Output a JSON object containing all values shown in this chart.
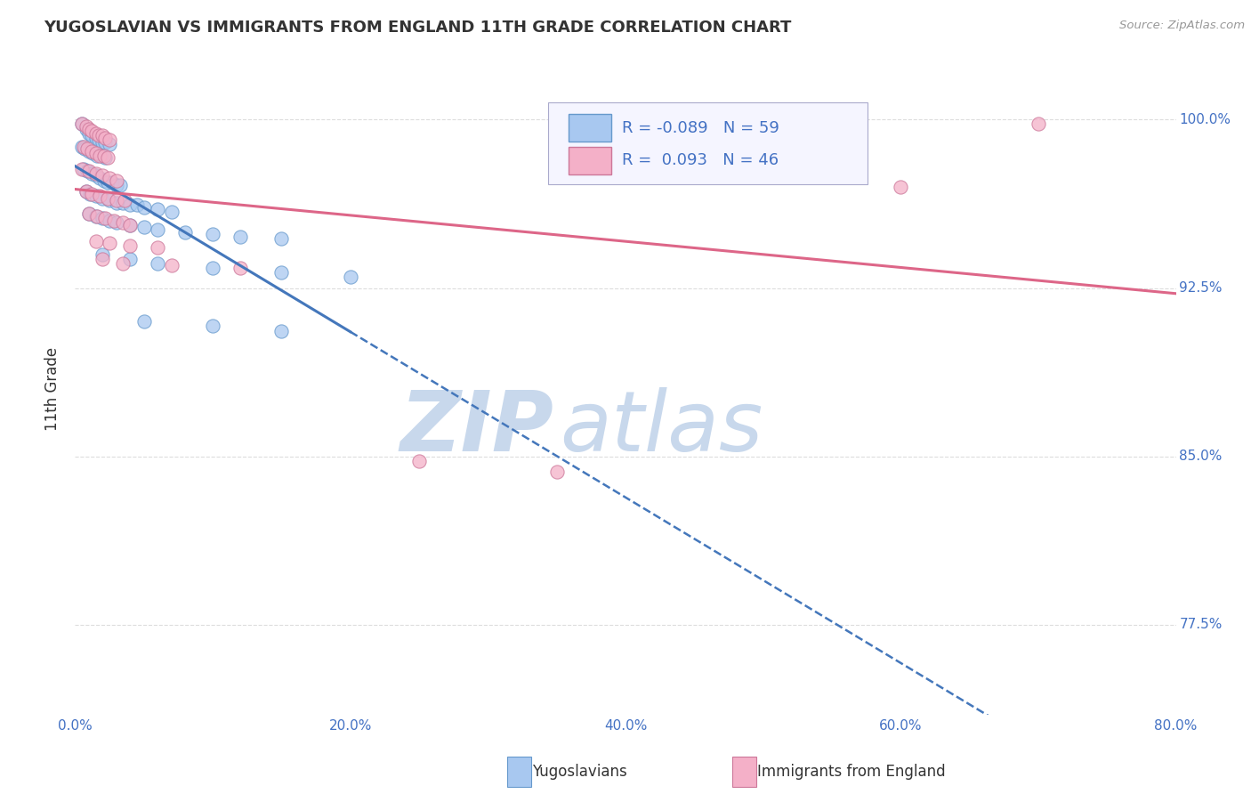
{
  "title": "YUGOSLAVIAN VS IMMIGRANTS FROM ENGLAND 11TH GRADE CORRELATION CHART",
  "source": "Source: ZipAtlas.com",
  "xlabel_blue": "Yugoslavians",
  "xlabel_pink": "Immigrants from England",
  "ylabel": "11th Grade",
  "x_min": 0.0,
  "x_max": 0.8,
  "y_min": 0.735,
  "y_max": 1.025,
  "yticks": [
    0.775,
    0.85,
    0.925,
    1.0
  ],
  "ytick_labels": [
    "77.5%",
    "85.0%",
    "92.5%",
    "100.0%"
  ],
  "xticks": [
    0.0,
    0.2,
    0.4,
    0.6,
    0.8
  ],
  "xtick_labels": [
    "0.0%",
    "20.0%",
    "40.0%",
    "60.0%",
    "80.0%"
  ],
  "blue_R": -0.089,
  "blue_N": 59,
  "pink_R": 0.093,
  "pink_N": 46,
  "blue_color": "#a8c8f0",
  "blue_edge_color": "#6699cc",
  "pink_color": "#f4b0c8",
  "pink_edge_color": "#cc7799",
  "blue_trend_color": "#4477bb",
  "pink_trend_color": "#dd6688",
  "blue_scatter": [
    [
      0.005,
      0.998
    ],
    [
      0.008,
      0.996
    ],
    [
      0.01,
      0.994
    ],
    [
      0.012,
      0.993
    ],
    [
      0.015,
      0.992
    ],
    [
      0.017,
      0.991
    ],
    [
      0.02,
      0.99
    ],
    [
      0.022,
      0.99
    ],
    [
      0.025,
      0.989
    ],
    [
      0.005,
      0.988
    ],
    [
      0.007,
      0.987
    ],
    [
      0.01,
      0.986
    ],
    [
      0.013,
      0.985
    ],
    [
      0.016,
      0.984
    ],
    [
      0.019,
      0.984
    ],
    [
      0.022,
      0.983
    ],
    [
      0.006,
      0.978
    ],
    [
      0.009,
      0.977
    ],
    [
      0.012,
      0.976
    ],
    [
      0.015,
      0.975
    ],
    [
      0.018,
      0.974
    ],
    [
      0.021,
      0.973
    ],
    [
      0.024,
      0.972
    ],
    [
      0.027,
      0.972
    ],
    [
      0.03,
      0.971
    ],
    [
      0.033,
      0.971
    ],
    [
      0.008,
      0.968
    ],
    [
      0.011,
      0.967
    ],
    [
      0.015,
      0.966
    ],
    [
      0.02,
      0.965
    ],
    [
      0.025,
      0.964
    ],
    [
      0.03,
      0.963
    ],
    [
      0.035,
      0.963
    ],
    [
      0.04,
      0.962
    ],
    [
      0.045,
      0.962
    ],
    [
      0.05,
      0.961
    ],
    [
      0.06,
      0.96
    ],
    [
      0.07,
      0.959
    ],
    [
      0.01,
      0.958
    ],
    [
      0.015,
      0.957
    ],
    [
      0.02,
      0.956
    ],
    [
      0.025,
      0.955
    ],
    [
      0.03,
      0.954
    ],
    [
      0.04,
      0.953
    ],
    [
      0.05,
      0.952
    ],
    [
      0.06,
      0.951
    ],
    [
      0.08,
      0.95
    ],
    [
      0.1,
      0.949
    ],
    [
      0.12,
      0.948
    ],
    [
      0.15,
      0.947
    ],
    [
      0.02,
      0.94
    ],
    [
      0.04,
      0.938
    ],
    [
      0.06,
      0.936
    ],
    [
      0.1,
      0.934
    ],
    [
      0.15,
      0.932
    ],
    [
      0.2,
      0.93
    ],
    [
      0.05,
      0.91
    ],
    [
      0.1,
      0.908
    ],
    [
      0.15,
      0.906
    ]
  ],
  "pink_scatter": [
    [
      0.005,
      0.998
    ],
    [
      0.008,
      0.997
    ],
    [
      0.01,
      0.996
    ],
    [
      0.012,
      0.995
    ],
    [
      0.015,
      0.994
    ],
    [
      0.017,
      0.993
    ],
    [
      0.02,
      0.993
    ],
    [
      0.022,
      0.992
    ],
    [
      0.025,
      0.991
    ],
    [
      0.006,
      0.988
    ],
    [
      0.009,
      0.987
    ],
    [
      0.012,
      0.986
    ],
    [
      0.015,
      0.985
    ],
    [
      0.018,
      0.984
    ],
    [
      0.021,
      0.984
    ],
    [
      0.024,
      0.983
    ],
    [
      0.005,
      0.978
    ],
    [
      0.01,
      0.977
    ],
    [
      0.015,
      0.976
    ],
    [
      0.02,
      0.975
    ],
    [
      0.025,
      0.974
    ],
    [
      0.03,
      0.973
    ],
    [
      0.008,
      0.968
    ],
    [
      0.012,
      0.967
    ],
    [
      0.018,
      0.966
    ],
    [
      0.024,
      0.965
    ],
    [
      0.03,
      0.964
    ],
    [
      0.036,
      0.964
    ],
    [
      0.01,
      0.958
    ],
    [
      0.016,
      0.957
    ],
    [
      0.022,
      0.956
    ],
    [
      0.028,
      0.955
    ],
    [
      0.035,
      0.954
    ],
    [
      0.04,
      0.953
    ],
    [
      0.015,
      0.946
    ],
    [
      0.025,
      0.945
    ],
    [
      0.04,
      0.944
    ],
    [
      0.06,
      0.943
    ],
    [
      0.02,
      0.938
    ],
    [
      0.035,
      0.936
    ],
    [
      0.07,
      0.935
    ],
    [
      0.12,
      0.934
    ],
    [
      0.25,
      0.848
    ],
    [
      0.6,
      0.97
    ],
    [
      0.7,
      0.998
    ],
    [
      0.35,
      0.843
    ]
  ],
  "watermark_zip": "ZIP",
  "watermark_atlas": "atlas",
  "watermark_color_zip": "#c8d8ec",
  "watermark_color_atlas": "#c8d8ec",
  "background_color": "#ffffff",
  "grid_color": "#dddddd",
  "axis_color": "#4472c4",
  "title_color": "#333333",
  "legend_box_color": "#f5f5ff",
  "legend_border_color": "#aaaacc"
}
